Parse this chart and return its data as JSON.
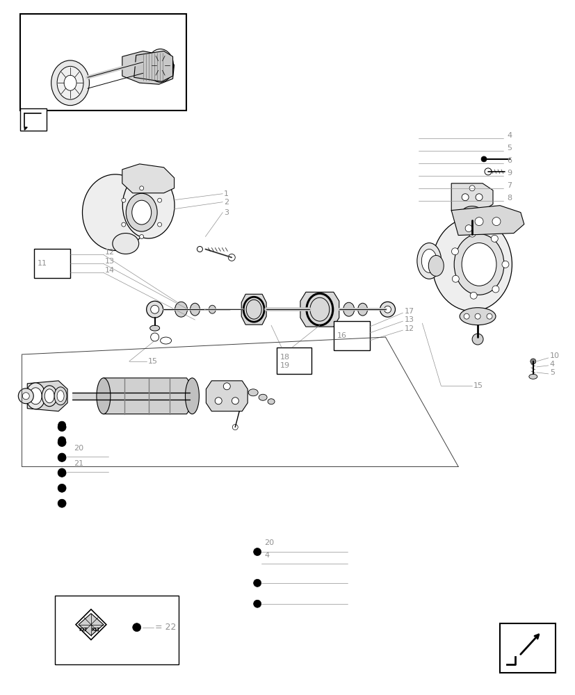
{
  "bg": "#ffffff",
  "lc": "#000000",
  "gc": "#909090",
  "fig_w": 8.28,
  "fig_h": 10.0,
  "dpi": 100
}
